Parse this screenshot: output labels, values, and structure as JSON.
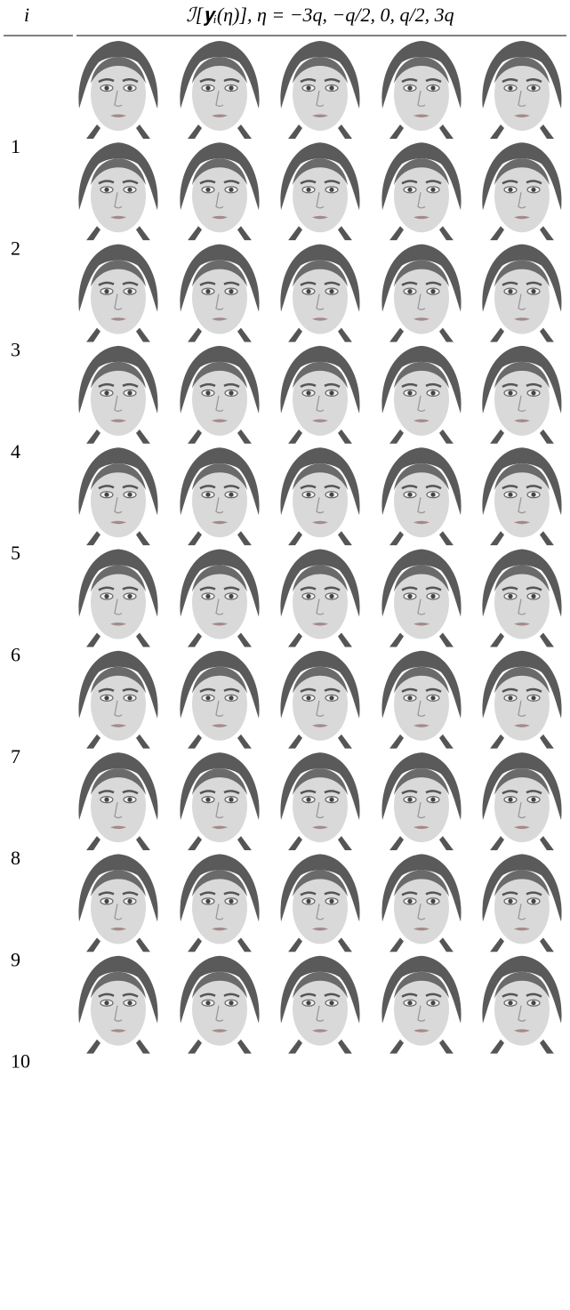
{
  "table": {
    "header": [
      "i",
      "ℐ[𝐲ᵢ(η)], η = −3q, −q/2, 0, q/2, 3q"
    ],
    "rows": [
      {
        "label": "1"
      },
      {
        "label": "2"
      },
      {
        "label": "3"
      },
      {
        "label": "4"
      },
      {
        "label": "5"
      },
      {
        "label": "6"
      },
      {
        "label": "7"
      },
      {
        "label": "8"
      },
      {
        "label": "9"
      },
      {
        "label": "10"
      }
    ]
  }
}
